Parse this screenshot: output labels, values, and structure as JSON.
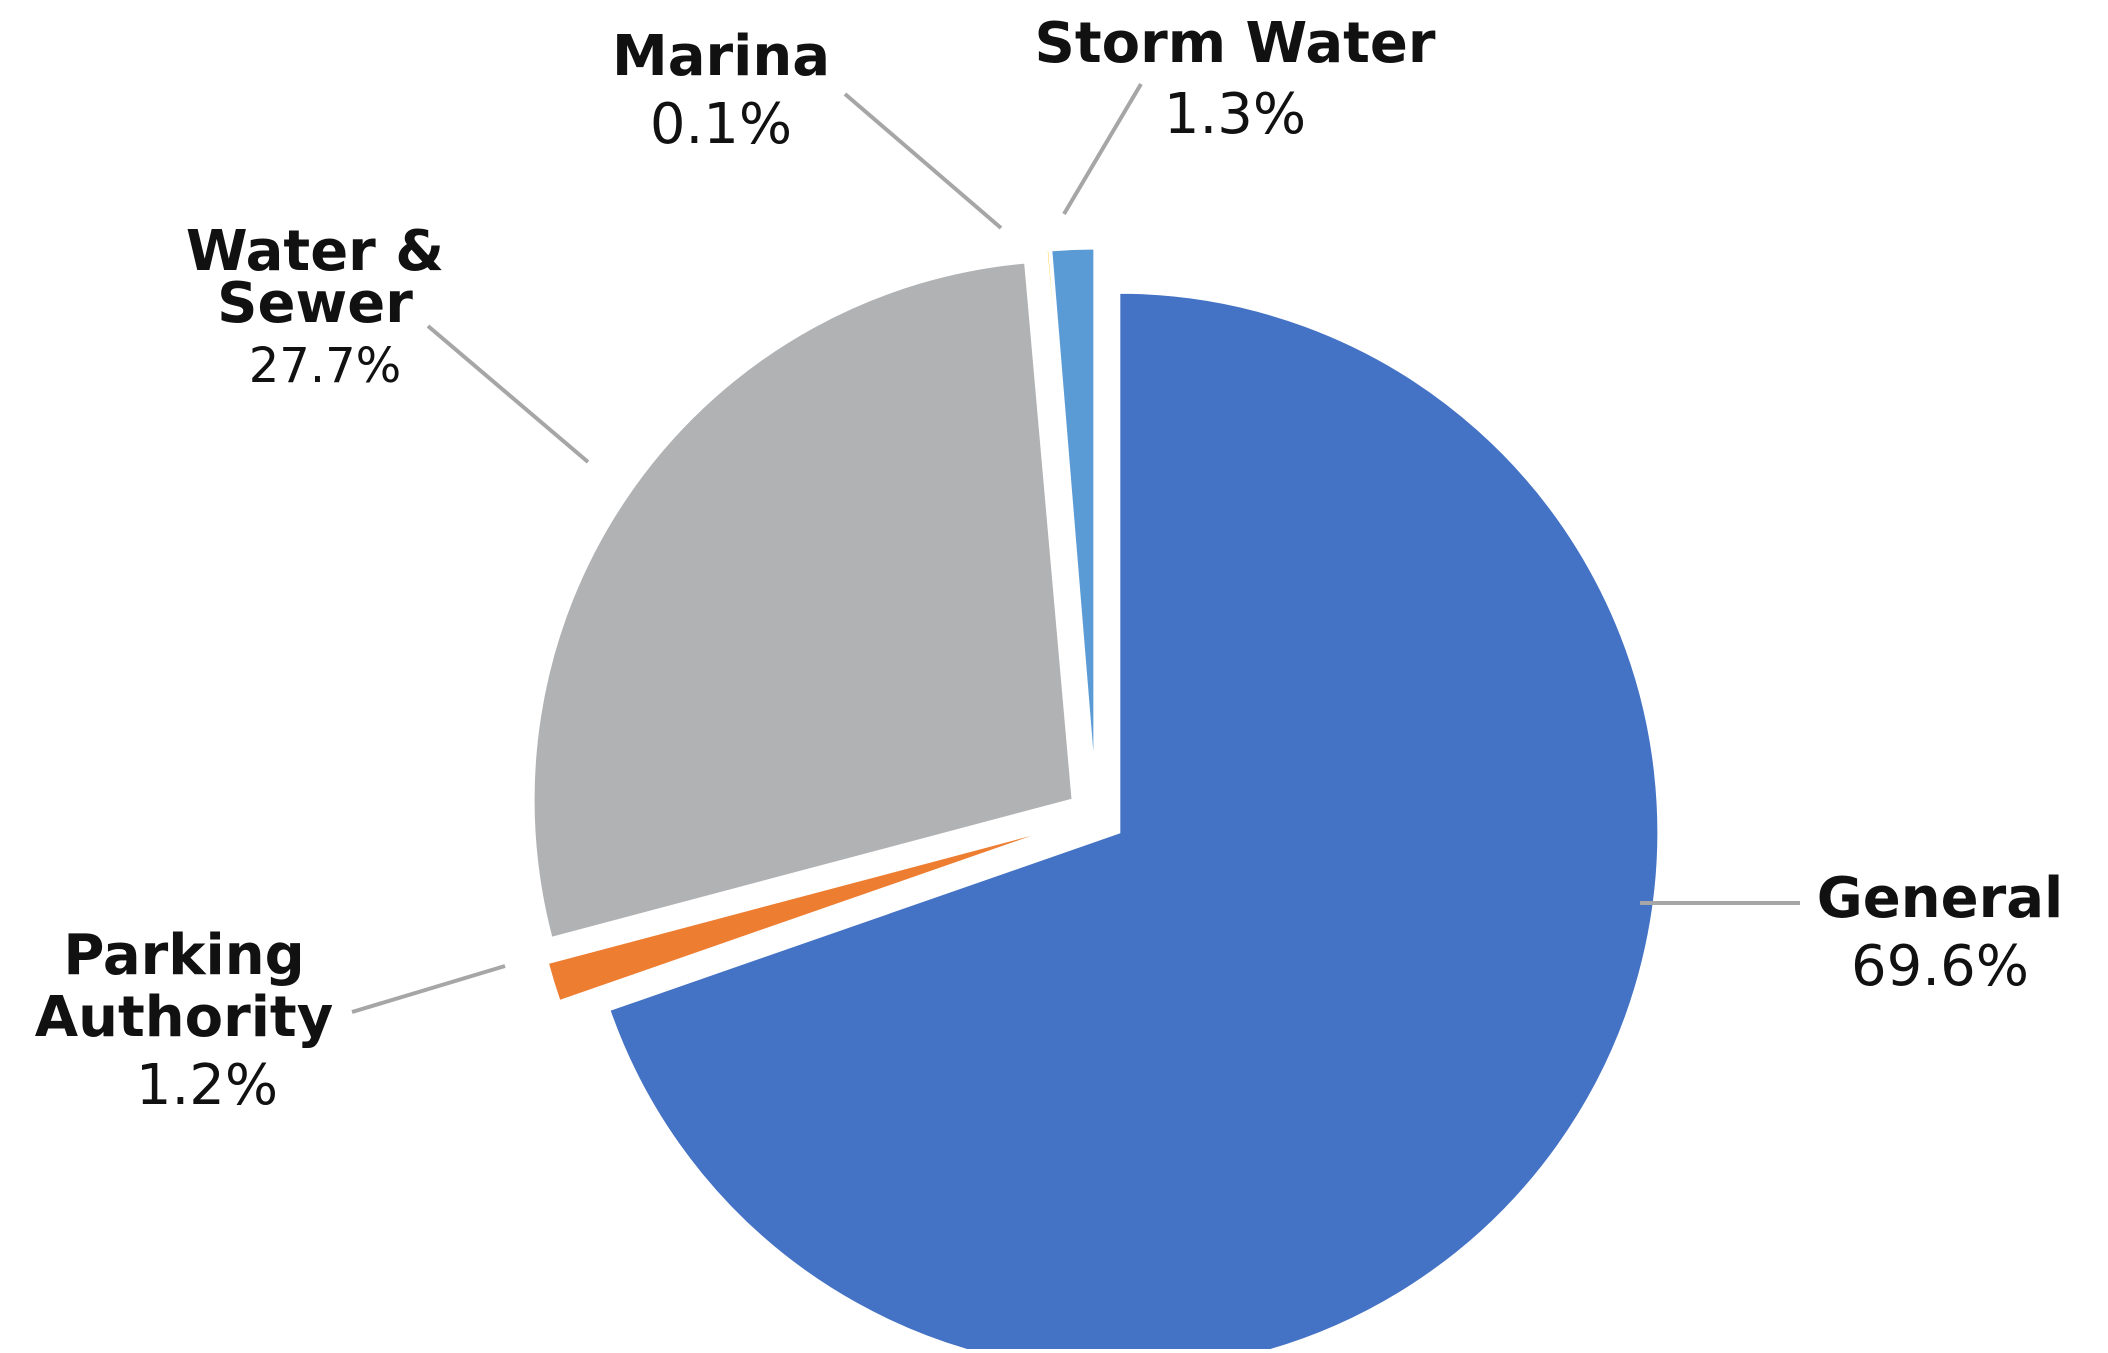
{
  "chart_data": {
    "type": "pie",
    "title": "",
    "legend": "none",
    "slices": [
      {
        "name": "General",
        "value": 69.6,
        "label": "69.6%",
        "color": "#4472C4"
      },
      {
        "name": "Parking Authority",
        "value": 1.2,
        "label": "1.2%",
        "color": "#ED7D31"
      },
      {
        "name": "Water & Sewer",
        "value": 27.7,
        "label": "27.7%",
        "color": "#B1B2B4"
      },
      {
        "name": "Marina",
        "value": 0.1,
        "label": "0.1%",
        "color": "#FFC000"
      },
      {
        "name": "Storm Water",
        "value": 1.3,
        "label": "1.3%",
        "color": "#5B9BD5"
      }
    ],
    "labels": {
      "general": {
        "name": "General",
        "value": "69.6%"
      },
      "parking": {
        "line1": "Parking",
        "line2": "Authority",
        "value": "1.2%"
      },
      "water_sewer": {
        "line1": "Water &",
        "line2": "Sewer",
        "value": "27.7%"
      },
      "marina": {
        "name": "Marina",
        "value": "0.1%"
      },
      "storm_water": {
        "name": "Storm Water",
        "value": "1.3%"
      }
    }
  }
}
